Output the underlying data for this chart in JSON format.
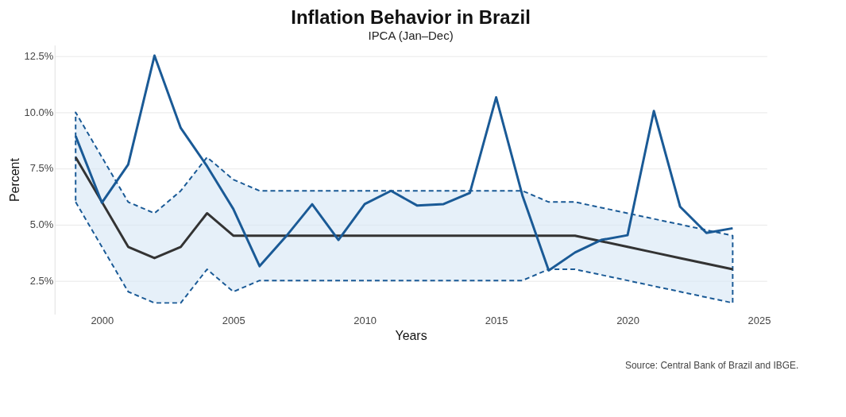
{
  "chart_data": {
    "type": "line",
    "title": "Inflation Behavior in Brazil",
    "subtitle": "IPCA (Jan–Dec)",
    "xlabel": "Years",
    "ylabel": "Percent",
    "annotations": [
      "Source: Central Bank of Brazil and IBGE."
    ],
    "x": [
      1999,
      2000,
      2001,
      2002,
      2003,
      2004,
      2005,
      2006,
      2007,
      2008,
      2009,
      2010,
      2011,
      2012,
      2013,
      2014,
      2015,
      2016,
      2017,
      2018,
      2019,
      2020,
      2021,
      2022,
      2023,
      2024
    ],
    "series": [
      {
        "color": "#333333",
        "values": [
          8,
          6,
          4,
          3.5,
          4,
          5.5,
          4.5,
          4.5,
          4.5,
          4.5,
          4.5,
          4.5,
          4.5,
          4.5,
          4.5,
          4.5,
          4.5,
          4.5,
          4.5,
          4.5,
          4.25,
          4,
          3.75,
          3.5,
          3.25,
          3
        ],
        "lower": [
          6,
          4,
          2,
          1.5,
          1.5,
          3,
          2,
          2.5,
          2.5,
          2.5,
          2.5,
          2.5,
          2.5,
          2.5,
          2.5,
          2.5,
          2.5,
          2.5,
          3,
          3,
          2.75,
          2.5,
          2.25,
          2,
          1.75,
          1.5
        ],
        "upper": [
          10,
          8,
          6,
          5.5,
          6.5,
          8,
          7,
          6.5,
          6.5,
          6.5,
          6.5,
          6.5,
          6.5,
          6.5,
          6.5,
          6.5,
          6.5,
          6.5,
          6,
          6,
          5.75,
          5.5,
          5.25,
          5,
          4.75,
          4.5
        ]
      },
      {
        "color": "#1a5a96",
        "values": [
          8.94,
          5.97,
          7.67,
          12.53,
          9.3,
          7.6,
          5.69,
          3.14,
          4.46,
          5.9,
          4.31,
          5.91,
          6.5,
          5.84,
          5.91,
          6.41,
          10.67,
          6.29,
          2.95,
          3.75,
          4.31,
          4.52,
          10.06,
          5.79,
          4.62,
          4.83
        ]
      }
    ],
    "xlim": [
      1998.2,
      2025.3
    ],
    "xticks": [
      2000,
      2005,
      2010,
      2015,
      2020,
      2025
    ],
    "ylim": [
      1.0,
      13.0
    ],
    "yticks": [
      {
        "value": 2.5,
        "label": "2.5%"
      },
      {
        "value": 5.0,
        "label": "5.0%"
      },
      {
        "value": 7.5,
        "label": "7.5%"
      },
      {
        "value": 10.0,
        "label": "10.0%"
      },
      {
        "value": 12.5,
        "label": "12.5%"
      }
    ],
    "grid": "y",
    "line_style": "solid",
    "marker": "none"
  }
}
